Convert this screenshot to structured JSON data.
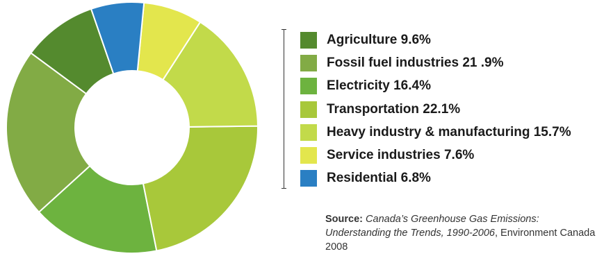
{
  "chart_data": {
    "type": "pie",
    "donut": true,
    "categories": [
      "Agriculture",
      "Fossil fuel industries",
      "Electricity",
      "Transportation",
      "Heavy industry & manufacturing",
      "Service industries",
      "Residential"
    ],
    "values": [
      9.6,
      21.9,
      16.4,
      22.1,
      15.7,
      7.6,
      6.8
    ],
    "labels": [
      "Agriculture 9.6%",
      "Fossil fuel industries 21 .9%",
      "Electricity 16.4%",
      "Transportation 22.1%",
      "Heavy industry & manufacturing 15.7%",
      "Service industries 7.6%",
      "Residential 6.8%"
    ],
    "colors": [
      "#548a2e",
      "#82ab45",
      "#6db33f",
      "#a8c83a",
      "#c2da4a",
      "#e3e64d",
      "#2a7fc3"
    ],
    "unit": "%",
    "legend": "right",
    "title": "",
    "source": {
      "label": "Source:",
      "title": "Canada’s Greenhouse Gas Emissions: Understanding the Trends, 1990-2006",
      "sep": ",",
      "publisher": "Environment Canada 2008"
    }
  }
}
